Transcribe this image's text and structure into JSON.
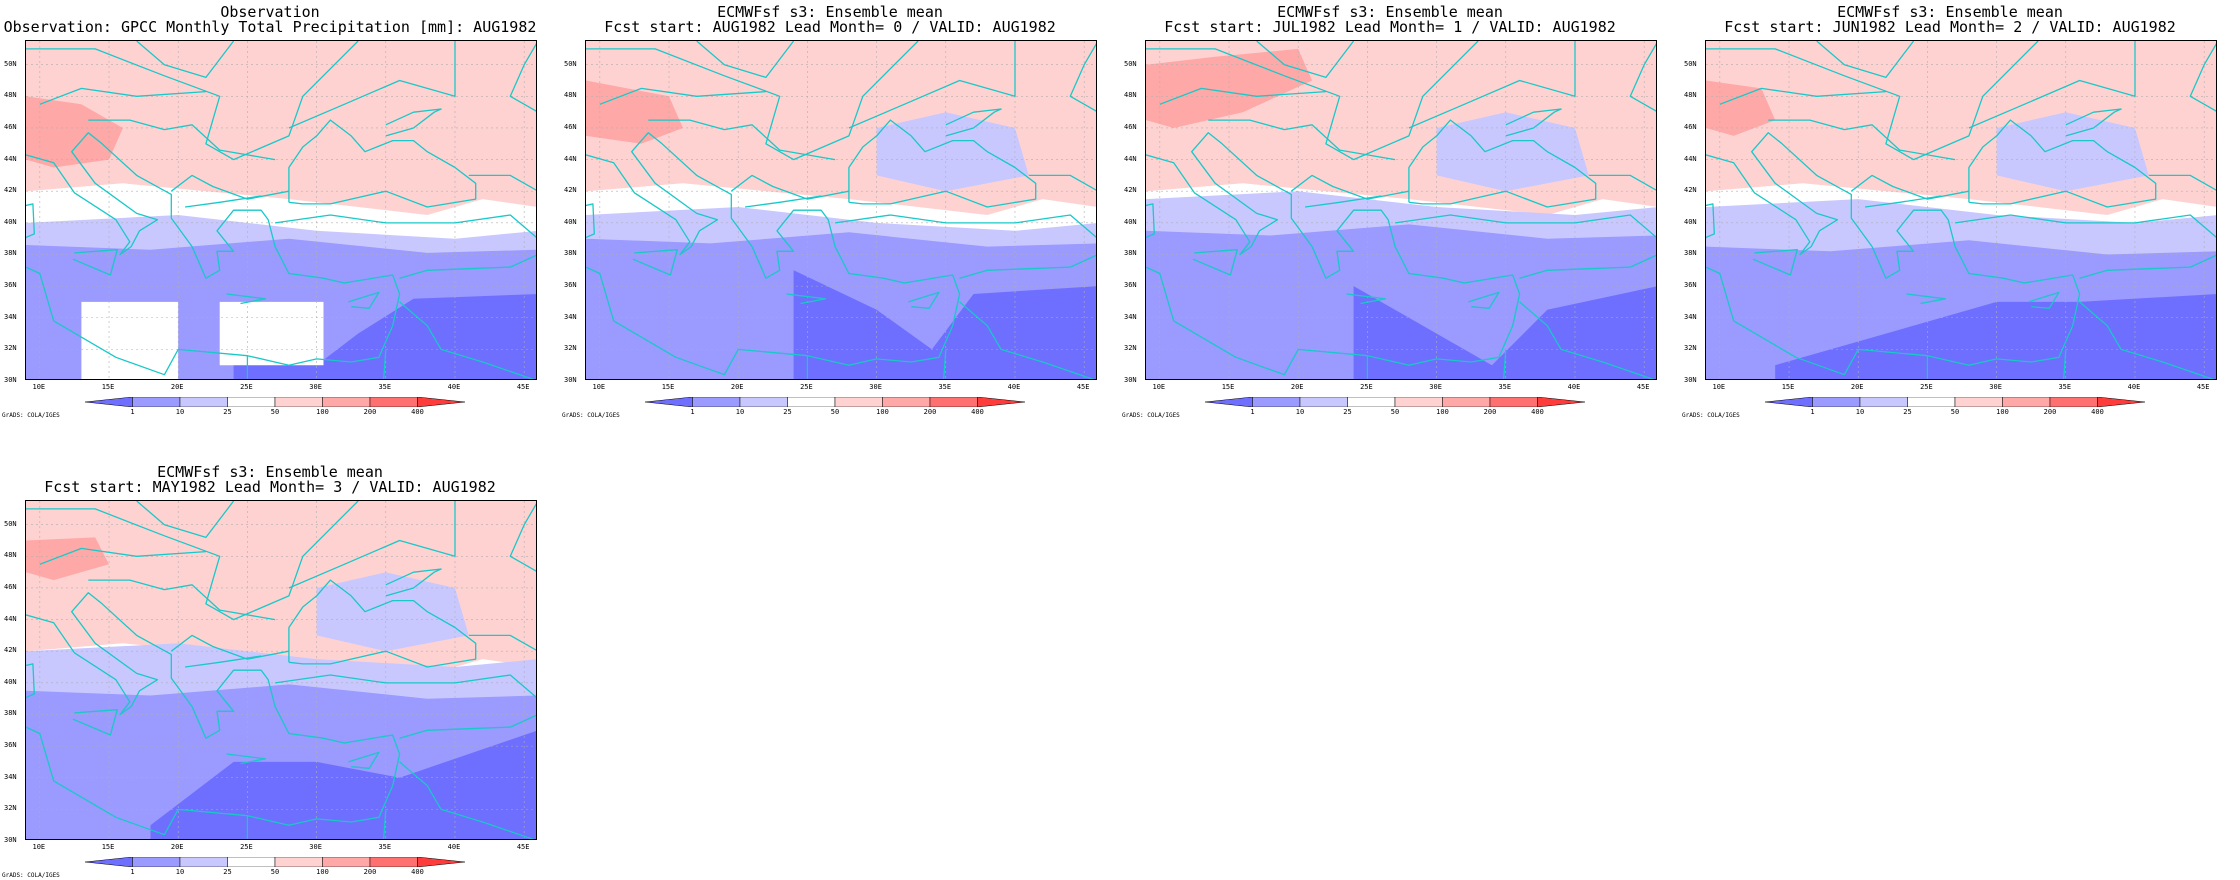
{
  "colorbar": {
    "labels": [
      "1",
      "10",
      "25",
      "50",
      "100",
      "200",
      "400"
    ],
    "colors": [
      "#6e6eff",
      "#9a9aff",
      "#c8c8ff",
      "#ffffff",
      "#ffd2d2",
      "#ffa8a8",
      "#ff7070",
      "#ff3c3c"
    ]
  },
  "axes": {
    "x_labels": [
      "10E",
      "15E",
      "20E",
      "25E",
      "30E",
      "35E",
      "40E",
      "45E"
    ],
    "y_labels": [
      "30N",
      "32N",
      "34N",
      "36N",
      "38N",
      "40N",
      "42N",
      "44N",
      "46N",
      "48N",
      "50N"
    ]
  },
  "coastline_color": "#19c8c8",
  "credit": "GrADS: COLA/IGES",
  "panels": [
    {
      "id": "obs",
      "title_line1": "Observation",
      "title_line2": "Observation: GPCC Monthly Total Precipitation [mm]: AUG1982",
      "variant": 0
    },
    {
      "id": "lead0",
      "title_line1": "ECMWFsf s3: Ensemble mean",
      "title_line2": "Fcst start: AUG1982  Lead Month= 0 / VALID: AUG1982",
      "variant": 1
    },
    {
      "id": "lead1",
      "title_line1": "ECMWFsf s3: Ensemble mean",
      "title_line2": "Fcst start: JUL1982  Lead Month= 1 / VALID: AUG1982",
      "variant": 2
    },
    {
      "id": "lead2",
      "title_line1": "ECMWFsf s3: Ensemble mean",
      "title_line2": "Fcst start: JUN1982  Lead Month= 2 / VALID: AUG1982",
      "variant": 3
    },
    {
      "id": "lead3",
      "title_line1": "ECMWFsf s3: Ensemble mean",
      "title_line2": "Fcst start: MAY1982  Lead Month= 3 / VALID: AUG1982",
      "variant": 4
    }
  ]
}
